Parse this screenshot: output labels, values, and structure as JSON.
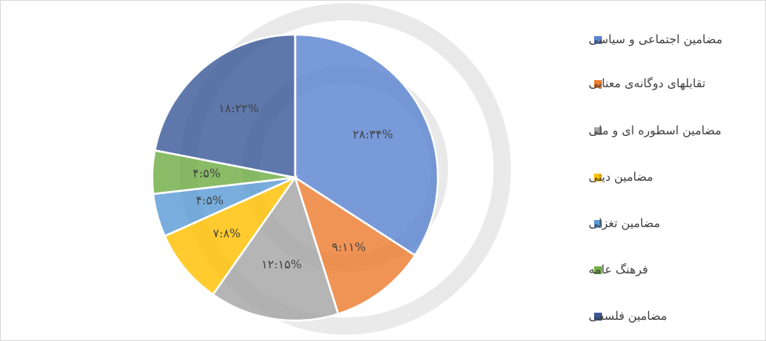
{
  "chart_data": {
    "type": "pie",
    "categories": [
      "مضامین اجتماعی و سیاسی",
      "تقابلهای دوگانه‌ی معنایی",
      "مضامین اسطوره ای و ملی",
      "مضامین دینی",
      "مضامین تغزلی",
      "فرهنگ عامه",
      "مضامین فلسفی"
    ],
    "values": [
      28,
      9,
      12,
      7,
      4,
      4,
      18
    ],
    "value_labels": [
      "۲۸:۳۴%",
      "۹:۱۱%",
      "۱۲:۱۵%",
      "۷:۸%",
      "۴:۵%",
      "۴:۵%",
      "۱۸:۲۲%"
    ],
    "colors": [
      "#5b84d1",
      "#ed7d31",
      "#a5a5a5",
      "#ffc000",
      "#5b9bd5",
      "#70ad47",
      "#3b5a9a"
    ],
    "legend": "right"
  }
}
